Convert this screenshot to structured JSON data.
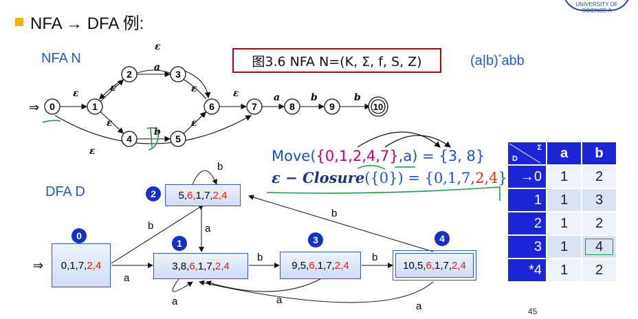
{
  "title": "NFA → DFA 例:",
  "nfa_label": "NFA N",
  "dfa_label": "DFA D",
  "caption": "图3.6 NFA N=(K, Σ, f, S, Z)",
  "regex_base": "(a|b)",
  "regex_sup": "*",
  "regex_tail": "abb",
  "nfa": {
    "start_arrow": "⇒",
    "states": [
      "0",
      "1",
      "2",
      "3",
      "4",
      "5",
      "6",
      "7",
      "8",
      "9",
      "10"
    ],
    "final_state": "10",
    "edges": [
      {
        "from": "0",
        "to": "1",
        "label": "ε"
      },
      {
        "from": "1",
        "to": "2",
        "label": "ε"
      },
      {
        "from": "1",
        "to": "4",
        "label": "ε"
      },
      {
        "from": "2",
        "to": "3",
        "label": "a"
      },
      {
        "from": "4",
        "to": "5",
        "label": "b"
      },
      {
        "from": "3",
        "to": "6",
        "label": "ε"
      },
      {
        "from": "5",
        "to": "6",
        "label": "ε"
      },
      {
        "from": "6",
        "to": "1",
        "label": "ε"
      },
      {
        "from": "6",
        "to": "7",
        "label": "ε"
      },
      {
        "from": "0",
        "to": "7",
        "label": "ε"
      },
      {
        "from": "7",
        "to": "8",
        "label": "a"
      },
      {
        "from": "8",
        "to": "9",
        "label": "b"
      },
      {
        "from": "9",
        "to": "10",
        "label": "b"
      }
    ]
  },
  "equations": {
    "move_prefix": "Move(",
    "move_set": "{0,1,2,4,7}",
    "move_mid": ",a) = {",
    "move_result": "3, 8",
    "move_end": "}",
    "closure_prefix": "ε − ",
    "closure_name": "Closure",
    "closure_arg": "({0})",
    "closure_eq": " = {",
    "closure_blue": "0,1,7,",
    "closure_red": "2,4",
    "closure_end": "}"
  },
  "dfa": {
    "start_arrow": "⇒",
    "states": [
      {
        "id": "0",
        "blue": "0,1,7,",
        "red": "2,4"
      },
      {
        "id": "1",
        "blue": "3,8,",
        "red": "6,",
        "blue2": "1,7,",
        "red2": "2,4"
      },
      {
        "id": "2",
        "blue": "5,",
        "red": "6,",
        "blue2": "1,7,",
        "red2": "2,4"
      },
      {
        "id": "3",
        "blue": "9,5,",
        "red": "6,",
        "blue2": "1,7,",
        "red2": "2,4"
      },
      {
        "id": "4",
        "blue": "10,5,",
        "red": "6,",
        "blue2": "1,7,",
        "red2": "2,4"
      }
    ],
    "edge_labels": {
      "e0_2": "b",
      "e0_1": "a",
      "loop2": "b",
      "e2_1": "a",
      "loop1": "a",
      "e1_3": "b",
      "e3_4": "b",
      "e4_2": "b",
      "e3_1": "a",
      "e4_1": "a"
    }
  },
  "table": {
    "corner_d": "D",
    "corner_sigma": "Σ",
    "headers": [
      "a",
      "b"
    ],
    "rows": [
      {
        "state": "→0",
        "a": "1",
        "b": "2"
      },
      {
        "state": "1",
        "a": "1",
        "b": "3"
      },
      {
        "state": "2",
        "a": "1",
        "b": "2"
      },
      {
        "state": "3",
        "a": "1",
        "b": "4"
      },
      {
        "state": "*4",
        "a": "1",
        "b": "2"
      }
    ]
  },
  "page_number": "45",
  "logo_text": "UNIVERSITY OF SCIENCE A",
  "colors": {
    "accent_blue": "#1f5cc9",
    "table_header": "#1a25d6",
    "red": "#e02000",
    "magenta": "#c0007a",
    "bullet": "#f3b500"
  }
}
